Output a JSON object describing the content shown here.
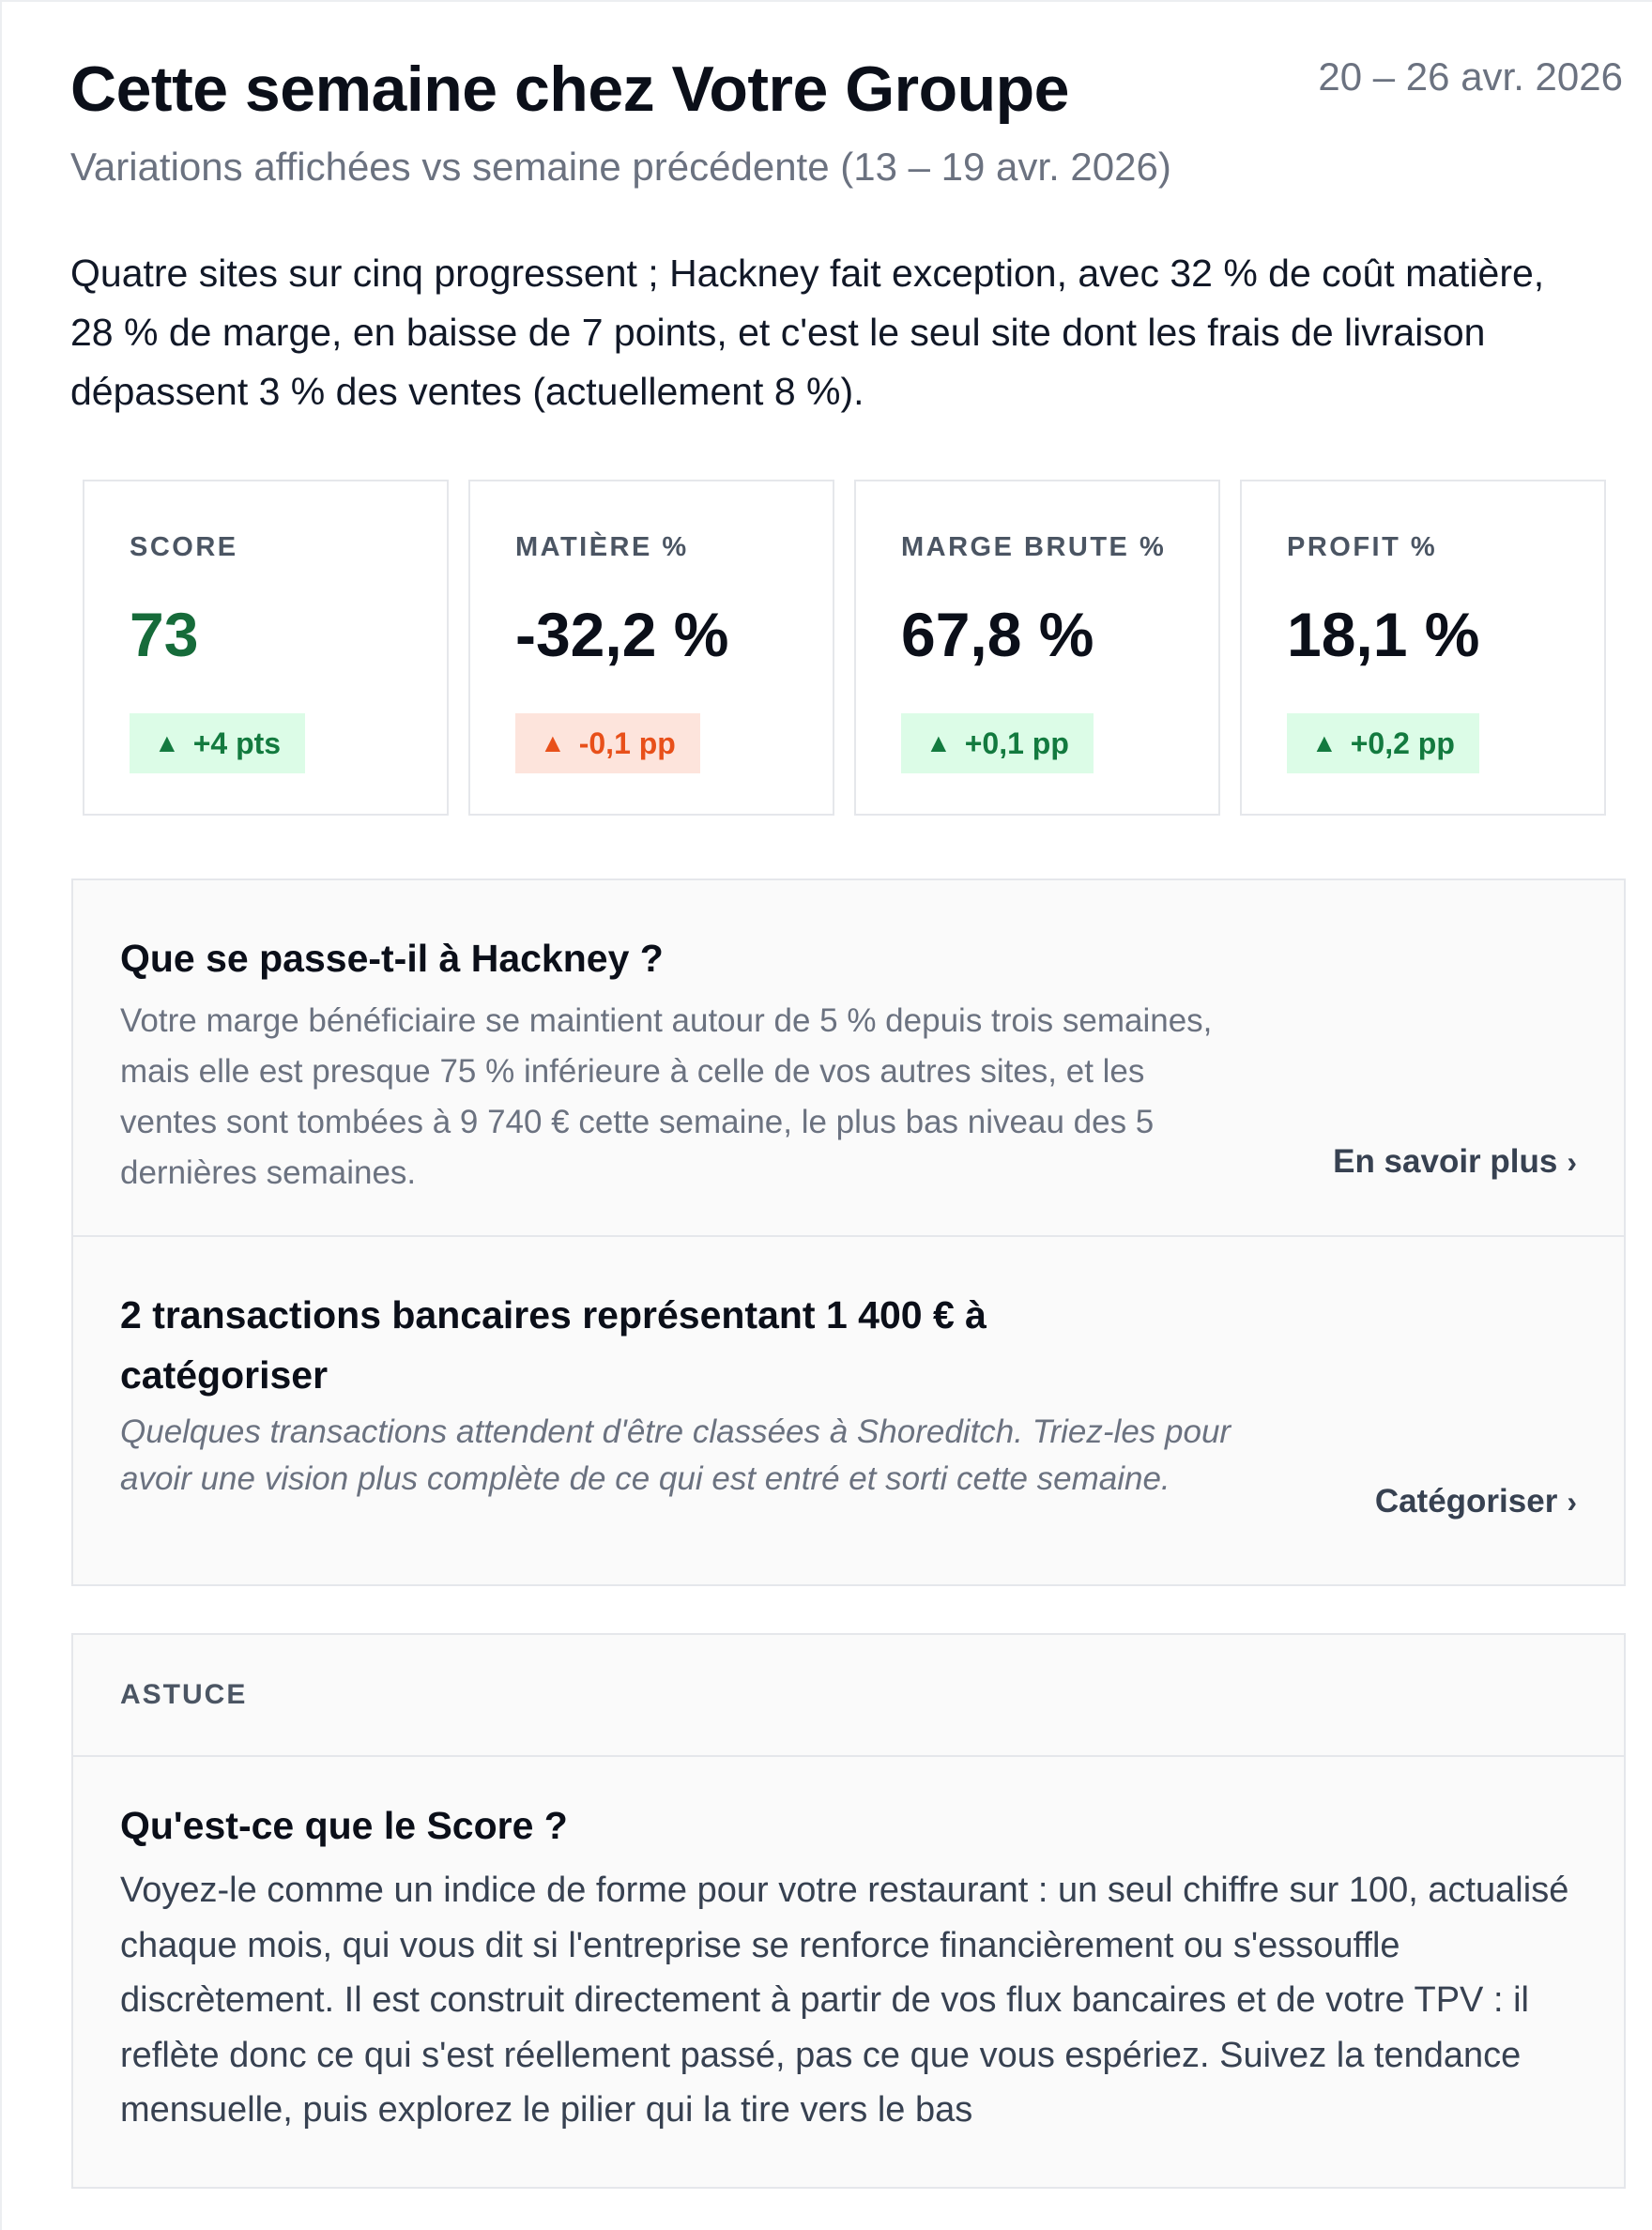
{
  "header": {
    "title": "Cette semaine chez Votre Groupe",
    "date_range": "20 – 26 avr. 2026",
    "subtitle": "Variations affichées vs semaine précédente (13 – 19 avr. 2026)"
  },
  "summary": "Quatre sites sur cinq progressent ; Hackney fait exception, avec 32 % de coût matière, 28 % de marge, en baisse de 7 points, et c'est le seul site dont les frais de livraison dépassent 3 % des ventes (actuellement 8 %).",
  "kpis": [
    {
      "label": "SCORE",
      "value": "73",
      "change": "+4 pts",
      "value_color": "#166b3a",
      "badge_color": "#137a3f",
      "badge_background": "#dcfce7"
    },
    {
      "label": "MATIÈRE %",
      "value": "-32,2 %",
      "change": "-0,1 pp",
      "value_color": "#0b0f19",
      "badge_color": "#e8501a",
      "badge_background": "#fde4dc"
    },
    {
      "label": "MARGE BRUTE %",
      "value": "67,8 %",
      "change": "+0,1 pp",
      "value_color": "#0b0f19",
      "badge_color": "#137a3f",
      "badge_background": "#dcfce7"
    },
    {
      "label": "PROFIT %",
      "value": "18,1 %",
      "change": "+0,2 pp",
      "value_color": "#0b0f19",
      "badge_color": "#137a3f",
      "badge_background": "#dcfce7"
    }
  ],
  "insights": [
    {
      "title": "Que se passe-t-il à Hackney ?",
      "body": "Votre marge bénéficiaire se maintient autour de 5 % depuis trois semaines, mais elle est presque 75 % inférieure à celle de vos autres sites, et les ventes sont tombées à 9 740 € cette semaine, le plus bas niveau des 5 dernières semaines.",
      "action": "En savoir plus"
    },
    {
      "title": "2 transactions bancaires représentant 1 400 € à catégoriser",
      "body": "Quelques transactions attendent d'être classées à Shoreditch. Triez-les pour avoir une vision plus complète de ce qui est entré et sorti cette semaine.",
      "action": "Catégoriser"
    }
  ],
  "tip": {
    "label": "ASTUCE",
    "title": "Qu'est-ce que le Score ?",
    "body": "Voyez-le comme un indice de forme pour votre restaurant : un seul chiffre sur 100, actualisé chaque mois, qui vous dit si l'entreprise se renforce financièrement ou s'essouffle discrètement. Il est construit directement à partir de vos flux bancaires et de votre TPV : il reflète donc ce qui s'est réellement passé, pas ce que vous espériez. Suivez la tendance mensuelle, puis explorez le pilier qui la tire vers le bas"
  }
}
